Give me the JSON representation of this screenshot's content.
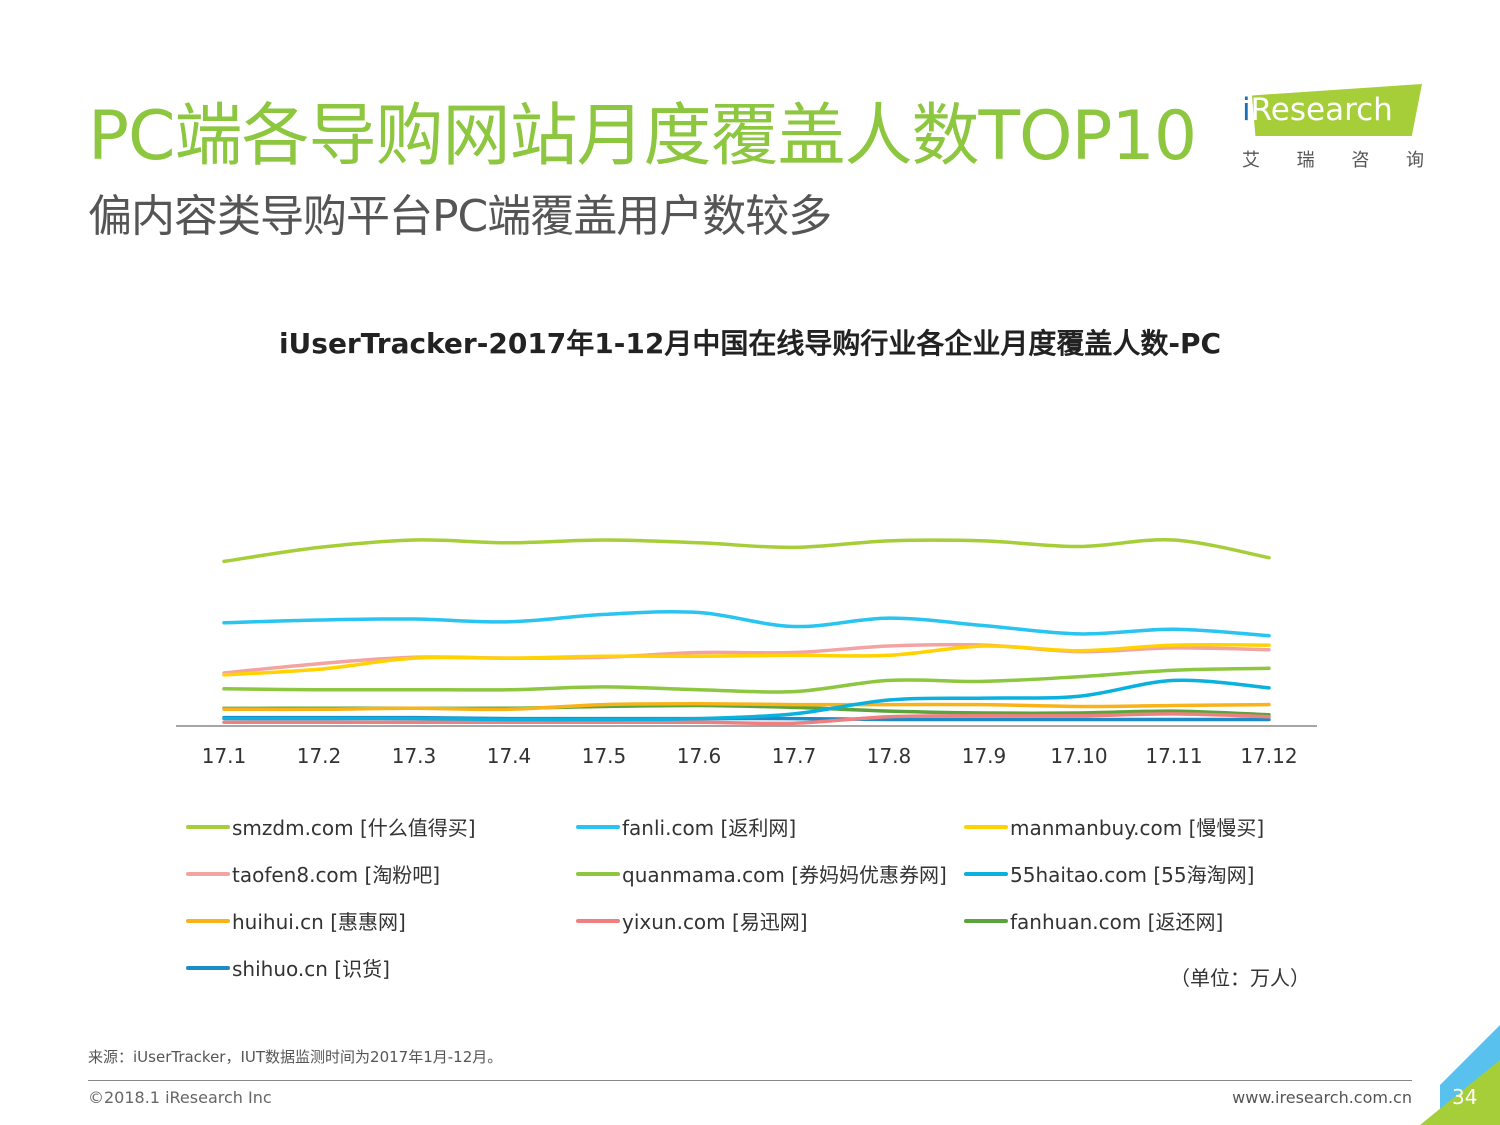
{
  "header": {
    "title": "PC端各导购网站月度覆盖人数TOP10",
    "subtitle": "偏内容类导购平台PC端覆盖用户数较多"
  },
  "logo": {
    "text_i": "i",
    "text_rest": "Research",
    "cn": [
      "艾",
      "瑞",
      "咨",
      "询"
    ]
  },
  "chart_data": {
    "type": "line",
    "title": "iUserTracker-2017年1-12月中国在线导购行业各企业月度覆盖人数-PC",
    "unit_label": "（单位：万人）",
    "x": [
      "17.1",
      "17.2",
      "17.3",
      "17.4",
      "17.5",
      "17.6",
      "17.7",
      "17.8",
      "17.9",
      "17.10",
      "17.11",
      "17.12"
    ],
    "ylim": [
      0,
      1000
    ],
    "series": [
      {
        "name": "smzdm.com [什么值得买]",
        "color": "#a6ce39",
        "values": [
          885,
          960,
          1000,
          985,
          1000,
          985,
          960,
          995,
          995,
          965,
          1000,
          905
        ]
      },
      {
        "name": "fanli.com [返利网]",
        "color": "#29c4ef",
        "values": [
          555,
          570,
          575,
          560,
          600,
          610,
          535,
          580,
          540,
          495,
          520,
          485
        ]
      },
      {
        "name": "manmanbuy.com [慢慢买]",
        "color": "#ffd200",
        "values": [
          275,
          305,
          365,
          365,
          375,
          375,
          380,
          380,
          430,
          405,
          435,
          435
        ]
      },
      {
        "name": "taofen8.com [淘粉吧]",
        "color": "#f4a3a3",
        "values": [
          285,
          335,
          370,
          365,
          370,
          395,
          395,
          430,
          435,
          400,
          420,
          410
        ]
      },
      {
        "name": "quanmama.com [券妈妈优惠券网]",
        "color": "#8dc63f",
        "values": [
          200,
          195,
          195,
          195,
          210,
          195,
          185,
          245,
          240,
          265,
          300,
          310
        ]
      },
      {
        "name": "55haitao.com [55海淘网]",
        "color": "#0ab0de",
        "values": [
          40,
          40,
          40,
          35,
          35,
          40,
          65,
          140,
          150,
          160,
          245,
          205
        ]
      },
      {
        "name": "huihui.cn [惠惠网]",
        "color": "#f9b218",
        "values": [
          90,
          90,
          95,
          90,
          115,
          120,
          115,
          115,
          115,
          105,
          110,
          115
        ]
      },
      {
        "name": "yixun.com [易迅网]",
        "color": "#f08080",
        "values": [
          20,
          20,
          20,
          20,
          20,
          20,
          15,
          50,
          55,
          55,
          65,
          50
        ]
      },
      {
        "name": "fanhuan.com [返还网]",
        "color": "#5ba33b",
        "values": [
          95,
          95,
          95,
          95,
          105,
          110,
          100,
          80,
          70,
          70,
          80,
          60
        ]
      },
      {
        "name": "shihuo.cn [识货]",
        "color": "#1c8bc7",
        "values": [
          45,
          45,
          45,
          40,
          40,
          40,
          40,
          35,
          35,
          35,
          35,
          35
        ]
      }
    ]
  },
  "footer": {
    "source": "来源：iUserTracker，IUT数据监测时间为2017年1月-12月。",
    "copyright": "©2018.1 iResearch Inc",
    "website": "www.iresearch.com.cn",
    "page": "34"
  }
}
